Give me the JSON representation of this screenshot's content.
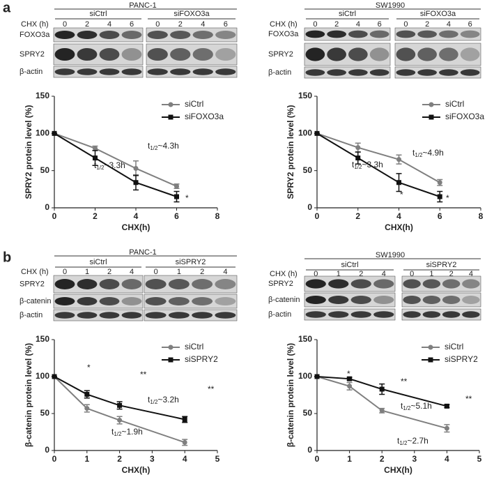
{
  "panel_labels": [
    "a",
    "b"
  ],
  "blots": [
    {
      "cell_line": "PANC-1",
      "time_label": "CHX (h)",
      "groups": [
        {
          "name": "siCtrl",
          "times": [
            0,
            2,
            4,
            6
          ]
        },
        {
          "name": "siFOXO3a",
          "times": [
            0,
            2,
            4,
            6
          ]
        }
      ],
      "rows": [
        "FOXO3a",
        "SPRY2",
        "β-actin"
      ]
    },
    {
      "cell_line": "SW1990",
      "time_label": "CHX (h)",
      "groups": [
        {
          "name": "siCtrl",
          "times": [
            0,
            2,
            4,
            6
          ]
        },
        {
          "name": "siFOXO3a",
          "times": [
            0,
            2,
            4,
            6
          ]
        }
      ],
      "rows": [
        "FOXO3a",
        "SPRY2",
        "β-actin"
      ]
    },
    {
      "cell_line": "PANC-1",
      "time_label": "CHX (h)",
      "groups": [
        {
          "name": "siCtrl",
          "times": [
            0,
            1,
            2,
            4
          ]
        },
        {
          "name": "siSPRY2",
          "times": [
            0,
            1,
            2,
            4
          ]
        }
      ],
      "rows": [
        "SPRY2",
        "β-catenin",
        "β-actin"
      ]
    },
    {
      "cell_line": "SW1990",
      "time_label": "CHX (h)",
      "groups": [
        {
          "name": "siCtrl",
          "times": [
            0,
            1,
            2,
            4
          ]
        },
        {
          "name": "siSPRY2",
          "times": [
            0,
            1,
            2,
            4
          ]
        }
      ],
      "rows": [
        "SPRY2",
        "β-catenin",
        "β-actin"
      ]
    }
  ],
  "chart_data": [
    {
      "type": "line",
      "x_label": "CHX(h)",
      "y_label": "SPRY2 protein level (%)",
      "x": [
        0,
        2,
        4,
        6
      ],
      "xlim": [
        0,
        8
      ],
      "xticks": [
        0,
        2,
        4,
        6,
        8
      ],
      "ylim": [
        0,
        150
      ],
      "yticks": [
        0,
        50,
        100,
        150
      ],
      "series": [
        {
          "name": "siCtrl",
          "color": "#7f7f7f",
          "marker": "circle",
          "values": [
            100,
            80,
            53,
            29
          ],
          "errors": [
            0,
            3,
            10,
            3
          ]
        },
        {
          "name": "siFOXO3a",
          "color": "#111111",
          "marker": "square",
          "values": [
            100,
            67,
            34,
            15
          ],
          "errors": [
            0,
            10,
            10,
            7
          ]
        }
      ],
      "annotations": [
        {
          "parts": [
            "t",
            "1/2",
            "~4.3h"
          ]
        },
        {
          "parts": [
            "t",
            "1/2",
            "~3.3h"
          ]
        },
        {
          "parts": [
            "*"
          ]
        }
      ]
    },
    {
      "type": "line",
      "x_label": "CHX(h)",
      "y_label": "SPRY2 protein level (%)",
      "x": [
        0,
        2,
        4,
        6
      ],
      "xlim": [
        0,
        8
      ],
      "xticks": [
        0,
        2,
        4,
        6,
        8
      ],
      "ylim": [
        0,
        150
      ],
      "yticks": [
        0,
        50,
        100,
        150
      ],
      "series": [
        {
          "name": "siCtrl",
          "color": "#7f7f7f",
          "marker": "circle",
          "values": [
            100,
            81,
            65,
            34
          ],
          "errors": [
            0,
            6,
            6,
            4
          ]
        },
        {
          "name": "siFOXO3a",
          "color": "#111111",
          "marker": "square",
          "values": [
            100,
            67,
            34,
            15
          ],
          "errors": [
            0,
            8,
            12,
            7
          ]
        }
      ],
      "annotations": [
        {
          "parts": [
            "t",
            "1/2",
            "~4.9h"
          ]
        },
        {
          "parts": [
            "t",
            "1/2",
            "~3.3h"
          ]
        },
        {
          "parts": [
            "*"
          ]
        },
        {
          "parts": [
            "*"
          ]
        }
      ]
    },
    {
      "type": "line",
      "x_label": "CHX(h)",
      "y_label": "β-catenin protein level (%)",
      "x": [
        0,
        1,
        2,
        4
      ],
      "xlim": [
        0,
        5
      ],
      "xticks": [
        0,
        1,
        2,
        3,
        4,
        5
      ],
      "ylim": [
        0,
        150
      ],
      "yticks": [
        0,
        50,
        100,
        150
      ],
      "series": [
        {
          "name": "siCtrl",
          "color": "#7f7f7f",
          "marker": "circle",
          "values": [
            100,
            57,
            41,
            11
          ],
          "errors": [
            0,
            5,
            5,
            4
          ]
        },
        {
          "name": "siSPRY2",
          "color": "#111111",
          "marker": "square",
          "values": [
            100,
            76,
            61,
            42
          ],
          "errors": [
            0,
            5,
            5,
            4
          ]
        }
      ],
      "annotations": [
        {
          "parts": [
            "*"
          ]
        },
        {
          "parts": [
            "**"
          ]
        },
        {
          "parts": [
            "**"
          ]
        },
        {
          "parts": [
            "t",
            "1/2",
            "~3.2h"
          ]
        },
        {
          "parts": [
            "t",
            "1/2",
            "~1.9h"
          ]
        }
      ]
    },
    {
      "type": "line",
      "x_label": "CHX(h)",
      "y_label": "β-catenin protein level (%)",
      "x": [
        0,
        1,
        2,
        4
      ],
      "xlim": [
        0,
        5
      ],
      "xticks": [
        0,
        1,
        2,
        3,
        4,
        5
      ],
      "ylim": [
        0,
        150
      ],
      "yticks": [
        0,
        50,
        100,
        150
      ],
      "series": [
        {
          "name": "siCtrl",
          "color": "#7f7f7f",
          "marker": "circle",
          "values": [
            100,
            87,
            54,
            30
          ],
          "errors": [
            0,
            5,
            3,
            5
          ]
        },
        {
          "name": "siSPRY2",
          "color": "#111111",
          "marker": "square",
          "values": [
            100,
            97,
            83,
            60
          ],
          "errors": [
            0,
            2,
            7,
            2
          ]
        }
      ],
      "annotations": [
        {
          "parts": [
            "*"
          ]
        },
        {
          "parts": [
            "**"
          ]
        },
        {
          "parts": [
            "**"
          ]
        },
        {
          "parts": [
            "t",
            "1/2",
            "~5.1h"
          ]
        },
        {
          "parts": [
            "t",
            "1/2",
            "~2.7h"
          ]
        }
      ]
    }
  ]
}
